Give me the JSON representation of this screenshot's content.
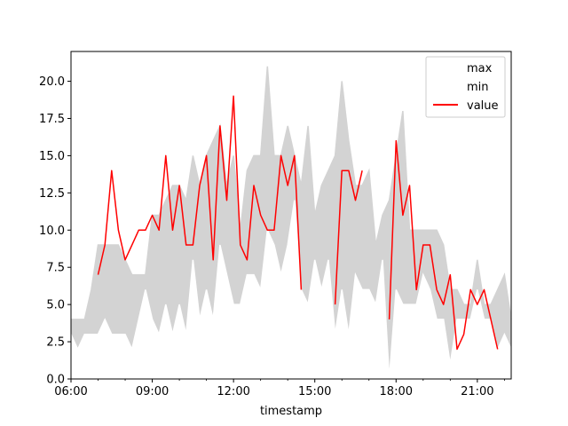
{
  "chart_data": {
    "type": "line",
    "title": "",
    "xlabel": "timestamp",
    "ylabel": "",
    "x_tick_labels": [
      "06:00",
      "09:00",
      "12:00",
      "15:00",
      "18:00",
      "21:00"
    ],
    "y_tick_labels": [
      "0.0",
      "2.5",
      "5.0",
      "7.5",
      "10.0",
      "12.5",
      "15.0",
      "17.5",
      "20.0"
    ],
    "xlim": [
      "06:00",
      "22:15"
    ],
    "ylim": [
      0,
      22
    ],
    "grid": false,
    "legend_position": "top-right",
    "x": [
      "06:00",
      "06:15",
      "06:30",
      "06:45",
      "07:00",
      "07:15",
      "07:30",
      "07:45",
      "08:00",
      "08:15",
      "08:30",
      "08:45",
      "09:00",
      "09:15",
      "09:30",
      "09:45",
      "10:00",
      "10:15",
      "10:30",
      "10:45",
      "11:00",
      "11:15",
      "11:30",
      "11:45",
      "12:00",
      "12:15",
      "12:30",
      "12:45",
      "13:00",
      "13:15",
      "13:30",
      "13:45",
      "14:00",
      "14:15",
      "14:30",
      "14:45",
      "15:00",
      "15:15",
      "15:30",
      "15:45",
      "16:00",
      "16:15",
      "16:30",
      "16:45",
      "17:00",
      "17:15",
      "17:30",
      "17:45",
      "18:00",
      "18:15",
      "18:30",
      "18:45",
      "19:00",
      "19:15",
      "19:30",
      "19:45",
      "20:00",
      "20:15",
      "20:30",
      "20:45",
      "21:00",
      "21:15",
      "21:30",
      "21:45",
      "22:00",
      "22:15"
    ],
    "series": [
      {
        "name": "max",
        "color": "#d3d3d3",
        "values": [
          4,
          4,
          4,
          6,
          9,
          9,
          9,
          9,
          8,
          7,
          7,
          7,
          11,
          11,
          12,
          13,
          13,
          12,
          15,
          13,
          15,
          16,
          17,
          13,
          15,
          10,
          14,
          15,
          15,
          21,
          15,
          15,
          17,
          15,
          13,
          17,
          11,
          13,
          14,
          15,
          20,
          16,
          13,
          13,
          14,
          9,
          11,
          12,
          15,
          18,
          10,
          10,
          10,
          10,
          10,
          9,
          6,
          6,
          5,
          5,
          8,
          5,
          5,
          6,
          7,
          4
        ]
      },
      {
        "name": "min",
        "color": "#ffffff",
        "values": [
          3,
          2,
          3,
          3,
          3,
          4,
          3,
          3,
          3,
          2,
          4,
          6,
          4,
          3,
          5,
          3,
          5,
          3,
          8,
          4,
          6,
          4,
          9,
          7,
          5,
          5,
          7,
          7,
          6,
          10,
          9,
          7,
          9,
          12,
          6,
          5,
          8,
          6,
          8,
          3,
          6,
          3,
          7,
          6,
          6,
          5,
          8,
          0,
          6,
          5,
          5,
          5,
          7,
          6,
          4,
          4,
          1,
          4,
          4,
          4,
          6,
          4,
          4,
          2,
          3,
          2
        ]
      },
      {
        "name": "value",
        "color": "#ff0000",
        "values": [
          null,
          null,
          null,
          null,
          7,
          9,
          14,
          10,
          8,
          9,
          10,
          10,
          11,
          10,
          15,
          10,
          13,
          9,
          9,
          13,
          15,
          8,
          17,
          12,
          19,
          9,
          8,
          13,
          11,
          10,
          10,
          15,
          13,
          15,
          6,
          null,
          null,
          null,
          null,
          5,
          14,
          14,
          12,
          14,
          null,
          null,
          null,
          4,
          16,
          11,
          13,
          6,
          9,
          9,
          6,
          5,
          7,
          2,
          3,
          6,
          5,
          6,
          4,
          2,
          null,
          null
        ]
      }
    ]
  }
}
